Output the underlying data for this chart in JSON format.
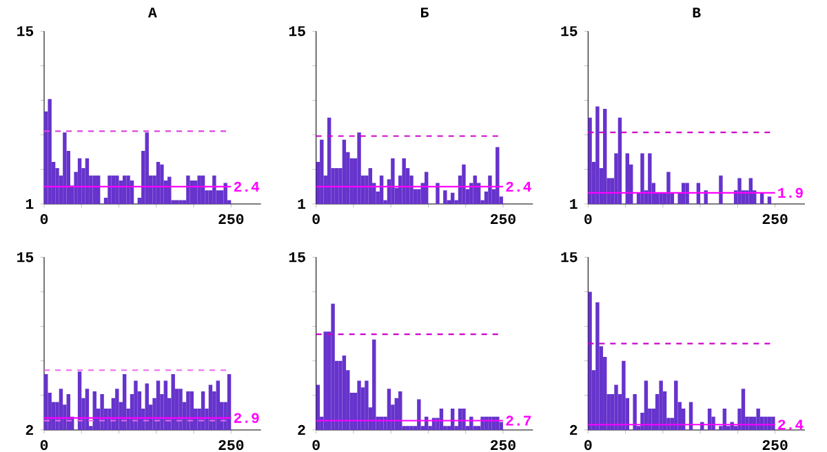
{
  "chart_data": [
    {
      "type": "histogram",
      "title": "А",
      "color": "#6633cc",
      "xlim": [
        0,
        290
      ],
      "ylim": [
        1,
        15
      ],
      "xticks": [
        0,
        {
          "value": 50,
          "label": null
        },
        {
          "value": 100,
          "label": null
        },
        {
          "value": 150,
          "label": null
        },
        {
          "value": 200,
          "label": null
        },
        250
      ],
      "yticks": [
        1,
        {
          "value": 3.8,
          "label": null
        },
        {
          "value": 6.6,
          "label": null
        },
        {
          "value": 9.4,
          "label": null
        },
        {
          "value": 12.2,
          "label": null
        },
        15
      ],
      "bins": [
        0,
        5,
        10,
        15,
        20,
        25,
        30,
        35,
        40,
        45,
        50,
        55,
        60,
        65,
        70,
        75,
        80,
        85,
        90,
        95,
        100,
        105,
        110,
        115,
        120,
        125,
        130,
        135,
        140,
        145,
        150,
        155,
        160,
        165,
        170,
        175,
        180,
        185,
        190,
        195,
        200,
        205,
        210,
        215,
        220,
        225,
        230,
        235,
        240,
        245,
        250
      ],
      "values": [
        8.5,
        9.5,
        4.4,
        3.9,
        3.3,
        6.8,
        5.3,
        2.5,
        3.6,
        4.7,
        3.9,
        4.7,
        3.3,
        3.3,
        3.3,
        1,
        1.5,
        3.3,
        3.3,
        3.3,
        2.9,
        3.3,
        3.3,
        2.9,
        1,
        1.5,
        5.3,
        6.8,
        3.3,
        3.3,
        4.4,
        4.2,
        2.9,
        3.2,
        1.3,
        1.3,
        1.3,
        1.3,
        3.3,
        2.9,
        2.9,
        3.3,
        3.3,
        2.1,
        2.1,
        3.3,
        2.1,
        2.1,
        2.7,
        1.3
      ],
      "ref_lines": [
        {
          "axis": "y",
          "value": 6.9,
          "color": "#dd44dd",
          "line_style": "dashed"
        },
        {
          "axis": "y",
          "value": 2.4,
          "label": "2.4",
          "color": "#ff00ff",
          "line_style": "solid"
        }
      ]
    },
    {
      "type": "histogram",
      "title": "Б",
      "color": "#6633cc",
      "xlim": [
        0,
        290
      ],
      "ylim": [
        1,
        15
      ],
      "xticks": [
        0,
        {
          "value": 50,
          "label": null
        },
        {
          "value": 100,
          "label": null
        },
        {
          "value": 150,
          "label": null
        },
        {
          "value": 200,
          "label": null
        },
        250
      ],
      "yticks": [
        1,
        {
          "value": 3.8,
          "label": null
        },
        {
          "value": 6.6,
          "label": null
        },
        {
          "value": 9.4,
          "label": null
        },
        {
          "value": 12.2,
          "label": null
        },
        15
      ],
      "bins": [
        0,
        5,
        10,
        15,
        20,
        25,
        30,
        35,
        40,
        45,
        50,
        55,
        60,
        65,
        70,
        75,
        80,
        85,
        90,
        95,
        100,
        105,
        110,
        115,
        120,
        125,
        130,
        135,
        140,
        145,
        150,
        155,
        160,
        165,
        170,
        175,
        180,
        185,
        190,
        195,
        200,
        205,
        210,
        215,
        220,
        225,
        230,
        235,
        240,
        245,
        250
      ],
      "values": [
        4.4,
        6.2,
        3.3,
        8.0,
        3.9,
        3.9,
        3.9,
        6.2,
        5.2,
        4.7,
        4.7,
        6.8,
        3.3,
        3.3,
        3.9,
        2.7,
        2.0,
        3.3,
        1.3,
        3.0,
        4.7,
        2.3,
        3.3,
        4.7,
        3.9,
        3.3,
        2.2,
        2.2,
        2.7,
        3.6,
        1,
        1,
        2.7,
        1,
        2.1,
        1.3,
        1.9,
        1.3,
        3.3,
        4.2,
        2.2,
        2.7,
        3.3,
        2.7,
        1.3,
        2.0,
        3.3,
        2.2,
        5.6,
        1.6
      ],
      "ref_lines": [
        {
          "axis": "y",
          "value": 6.5,
          "color": "#cc00cc",
          "line_style": "dashed"
        },
        {
          "axis": "y",
          "value": 2.4,
          "label": "2.4",
          "color": "#ff00ff",
          "line_style": "solid"
        }
      ]
    },
    {
      "type": "histogram",
      "title": "В",
      "color": "#6633cc",
      "xlim": [
        0,
        290
      ],
      "ylim": [
        1,
        15
      ],
      "xticks": [
        0,
        {
          "value": 50,
          "label": null
        },
        {
          "value": 100,
          "label": null
        },
        {
          "value": 150,
          "label": null
        },
        {
          "value": 200,
          "label": null
        },
        250
      ],
      "yticks": [
        1,
        {
          "value": 3.8,
          "label": null
        },
        {
          "value": 6.6,
          "label": null
        },
        {
          "value": 9.4,
          "label": null
        },
        {
          "value": 12.2,
          "label": null
        },
        15
      ],
      "bins": [
        0,
        5,
        10,
        15,
        20,
        25,
        30,
        35,
        40,
        45,
        50,
        55,
        60,
        65,
        70,
        75,
        80,
        85,
        90,
        95,
        100,
        105,
        110,
        115,
        120,
        125,
        130,
        135,
        140,
        145,
        150,
        155,
        160,
        165,
        170,
        175,
        180,
        185,
        190,
        195,
        200,
        205,
        210,
        215,
        220,
        225,
        230,
        235,
        240,
        245,
        250
      ],
      "values": [
        8.0,
        4.4,
        8.9,
        3.9,
        8.7,
        3.1,
        3.1,
        5.1,
        8.0,
        1,
        5.1,
        4.2,
        1,
        1.9,
        5.1,
        2.1,
        5.1,
        2.7,
        1.9,
        1.9,
        1.9,
        3.6,
        1.9,
        1,
        1.9,
        2.7,
        2.7,
        1,
        1,
        2.7,
        1,
        2.1,
        1,
        1,
        1,
        3.3,
        1,
        1,
        1,
        2.1,
        3.1,
        2.1,
        2.1,
        3.1,
        2.1,
        1,
        1.9,
        1,
        1.6,
        1
      ],
      "ref_lines": [
        {
          "axis": "y",
          "value": 6.8,
          "color": "#cc00cc",
          "line_style": "dashed"
        },
        {
          "axis": "y",
          "value": 1.9,
          "label": "1.9",
          "color": "#ff00ff",
          "line_style": "solid"
        }
      ]
    },
    {
      "type": "histogram",
      "color": "#6633cc",
      "xlim": [
        0,
        290
      ],
      "ylim": [
        2,
        15
      ],
      "xticks": [
        0,
        {
          "value": 50,
          "label": null
        },
        {
          "value": 100,
          "label": null
        },
        {
          "value": 150,
          "label": null
        },
        {
          "value": 200,
          "label": null
        },
        250
      ],
      "yticks": [
        2,
        {
          "value": 4.6,
          "label": null
        },
        {
          "value": 7.2,
          "label": null
        },
        {
          "value": 9.8,
          "label": null
        },
        {
          "value": 12.4,
          "label": null
        },
        15
      ],
      "bins": [
        0,
        5,
        10,
        15,
        20,
        25,
        30,
        35,
        40,
        45,
        50,
        55,
        60,
        65,
        70,
        75,
        80,
        85,
        90,
        95,
        100,
        105,
        110,
        115,
        120,
        125,
        130,
        135,
        140,
        145,
        150,
        155,
        160,
        165,
        170,
        175,
        180,
        185,
        190,
        195,
        200,
        205,
        210,
        215,
        220,
        225,
        230,
        235,
        240,
        245,
        250
      ],
      "values": [
        6.2,
        4.8,
        4.1,
        4.1,
        5.1,
        3.9,
        4.7,
        3.0,
        2,
        6.4,
        4.4,
        5.1,
        2.3,
        4.9,
        3.6,
        4.7,
        3.6,
        3.6,
        4.4,
        5.1,
        4.1,
        6.2,
        3.6,
        4.7,
        5.7,
        4.9,
        3.6,
        5.5,
        3.9,
        4.4,
        5.7,
        4.7,
        5.7,
        4.4,
        6.2,
        5.1,
        5.1,
        4.1,
        4.9,
        4.9,
        3.6,
        3.6,
        4.9,
        3.6,
        5.4,
        4.9,
        5.7,
        4.1,
        4.1,
        6.2
      ],
      "ref_lines": [
        {
          "axis": "y",
          "value": 6.5,
          "color": "#ee66ee",
          "line_style": "dashed"
        },
        {
          "axis": "y",
          "value": 2.7,
          "color": "#ee66ee",
          "line_style": "dashed"
        },
        {
          "axis": "y",
          "value": 2.9,
          "label": "2.9",
          "color": "#ff00ff",
          "line_style": "solid"
        }
      ]
    },
    {
      "type": "histogram",
      "color": "#6633cc",
      "xlim": [
        0,
        290
      ],
      "ylim": [
        2,
        15
      ],
      "xticks": [
        0,
        {
          "value": 50,
          "label": null
        },
        {
          "value": 100,
          "label": null
        },
        {
          "value": 150,
          "label": null
        },
        {
          "value": 200,
          "label": null
        },
        250
      ],
      "yticks": [
        2,
        {
          "value": 4.6,
          "label": null
        },
        {
          "value": 7.2,
          "label": null
        },
        {
          "value": 9.8,
          "label": null
        },
        {
          "value": 12.4,
          "label": null
        },
        15
      ],
      "bins": [
        0,
        5,
        10,
        15,
        20,
        25,
        30,
        35,
        40,
        45,
        50,
        55,
        60,
        65,
        70,
        75,
        80,
        85,
        90,
        95,
        100,
        105,
        110,
        115,
        120,
        125,
        130,
        135,
        140,
        145,
        150,
        155,
        160,
        165,
        170,
        175,
        180,
        185,
        190,
        195,
        200,
        205,
        210,
        215,
        220,
        225,
        230,
        235,
        240,
        245,
        250
      ],
      "values": [
        5.4,
        3.0,
        9.4,
        9.4,
        11.5,
        7.2,
        7.2,
        7.6,
        6.5,
        4.8,
        4.8,
        5.7,
        5.2,
        5.7,
        3.7,
        8.8,
        3.0,
        3.0,
        3.0,
        5.1,
        3.9,
        4.4,
        4.9,
        2.3,
        2.3,
        2.3,
        2.3,
        4.3,
        2.3,
        3.0,
        2.3,
        2.9,
        2.9,
        3.6,
        2.3,
        2.3,
        3.6,
        2.3,
        3.6,
        3.6,
        2.3,
        3.0,
        2.3,
        2.3,
        3.0,
        3.0,
        3.0,
        3.0,
        3.0,
        2.6
      ],
      "ref_lines": [
        {
          "axis": "y",
          "value": 9.2,
          "color": "#cc00cc",
          "line_style": "dashed"
        },
        {
          "axis": "y",
          "value": 2.7,
          "label": "2.7",
          "color": "#ff00ff",
          "line_style": "solid"
        }
      ]
    },
    {
      "type": "histogram",
      "color": "#6633cc",
      "xlim": [
        0,
        290
      ],
      "ylim": [
        2,
        15
      ],
      "xticks": [
        0,
        {
          "value": 50,
          "label": null
        },
        {
          "value": 100,
          "label": null
        },
        {
          "value": 150,
          "label": null
        },
        {
          "value": 200,
          "label": null
        },
        250
      ],
      "yticks": [
        2,
        {
          "value": 4.6,
          "label": null
        },
        {
          "value": 7.2,
          "label": null
        },
        {
          "value": 9.8,
          "label": null
        },
        {
          "value": 12.4,
          "label": null
        },
        15
      ],
      "bins": [
        0,
        5,
        10,
        15,
        20,
        25,
        30,
        35,
        40,
        45,
        50,
        55,
        60,
        65,
        70,
        75,
        80,
        85,
        90,
        95,
        100,
        105,
        110,
        115,
        120,
        125,
        130,
        135,
        140,
        145,
        150,
        155,
        160,
        165,
        170,
        175,
        180,
        185,
        190,
        195,
        200,
        205,
        210,
        215,
        220,
        225,
        230,
        235,
        240,
        245,
        250
      ],
      "values": [
        12.4,
        6.5,
        11.6,
        8.3,
        7.5,
        4.7,
        4.7,
        5.4,
        4.7,
        7.2,
        4.4,
        2,
        4.7,
        2.3,
        3.3,
        5.7,
        3.6,
        3.6,
        4.7,
        5.7,
        4.9,
        2.9,
        2.9,
        5.7,
        4.1,
        3.6,
        2,
        4.1,
        2,
        2,
        2.6,
        2,
        3.6,
        3.0,
        2,
        2.3,
        3.6,
        2.3,
        2.6,
        2.3,
        3.6,
        5.1,
        3.0,
        3.0,
        3.0,
        3.6,
        3.0,
        3.0,
        3.0,
        3.0
      ],
      "ref_lines": [
        {
          "axis": "y",
          "value": 8.5,
          "color": "#cc00cc",
          "line_style": "dashed"
        },
        {
          "axis": "y",
          "value": 2.4,
          "label": "2.4",
          "color": "#ff00ff",
          "line_style": "solid"
        }
      ]
    }
  ]
}
